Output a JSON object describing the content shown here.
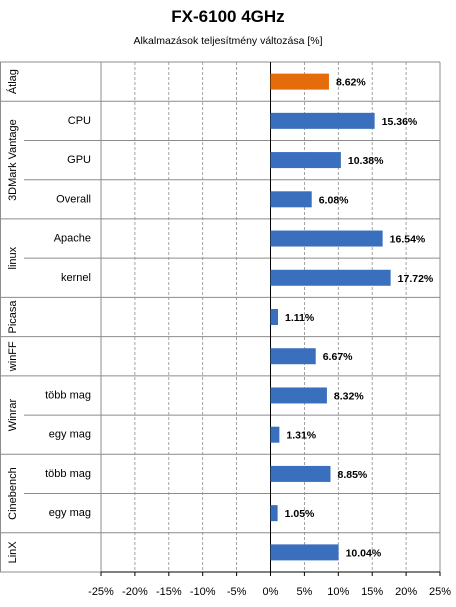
{
  "chart_data": {
    "type": "bar",
    "orientation": "horizontal",
    "title": "FX-6100 4GHz",
    "subtitle": "Alkalmazások teljesítmény változása  [%]",
    "xlim": [
      -25,
      25
    ],
    "x_ticks": [
      "-25%",
      "-20%",
      "-15%",
      "-10%",
      "-5%",
      "0%",
      "5%",
      "10%",
      "15%",
      "20%",
      "25%"
    ],
    "grid": true,
    "colors": {
      "highlight": "#e46c0a",
      "default": "#3a6fbd"
    },
    "groups": [
      {
        "name": "Átlag",
        "rows": [
          {
            "label": "",
            "value": 8.62,
            "value_label": "8.62%",
            "highlight": true
          }
        ]
      },
      {
        "name": "3DMark Vantage",
        "rows": [
          {
            "label": "CPU",
            "value": 15.36,
            "value_label": "15.36%"
          },
          {
            "label": "GPU",
            "value": 10.38,
            "value_label": "10.38%"
          },
          {
            "label": "Overall",
            "value": 6.08,
            "value_label": "6.08%"
          }
        ]
      },
      {
        "name": "linux",
        "rows": [
          {
            "label": "Apache",
            "value": 16.54,
            "value_label": "16.54%"
          },
          {
            "label": "kernel",
            "value": 17.72,
            "value_label": "17.72%"
          }
        ]
      },
      {
        "name": "Picasa",
        "rows": [
          {
            "label": "",
            "value": 1.11,
            "value_label": "1.11%"
          }
        ]
      },
      {
        "name": "winFF",
        "rows": [
          {
            "label": "",
            "value": 6.67,
            "value_label": "6.67%"
          }
        ]
      },
      {
        "name": "Winrar",
        "rows": [
          {
            "label": "több mag",
            "value": 8.32,
            "value_label": "8.32%"
          },
          {
            "label": "egy mag",
            "value": 1.31,
            "value_label": "1.31%"
          }
        ]
      },
      {
        "name": "Cinebench",
        "rows": [
          {
            "label": "több mag",
            "value": 8.85,
            "value_label": "8.85%"
          },
          {
            "label": "egy mag",
            "value": 1.05,
            "value_label": "1.05%"
          }
        ]
      },
      {
        "name": "LinX",
        "rows": [
          {
            "label": "",
            "value": 10.04,
            "value_label": "10.04%"
          }
        ]
      }
    ]
  }
}
